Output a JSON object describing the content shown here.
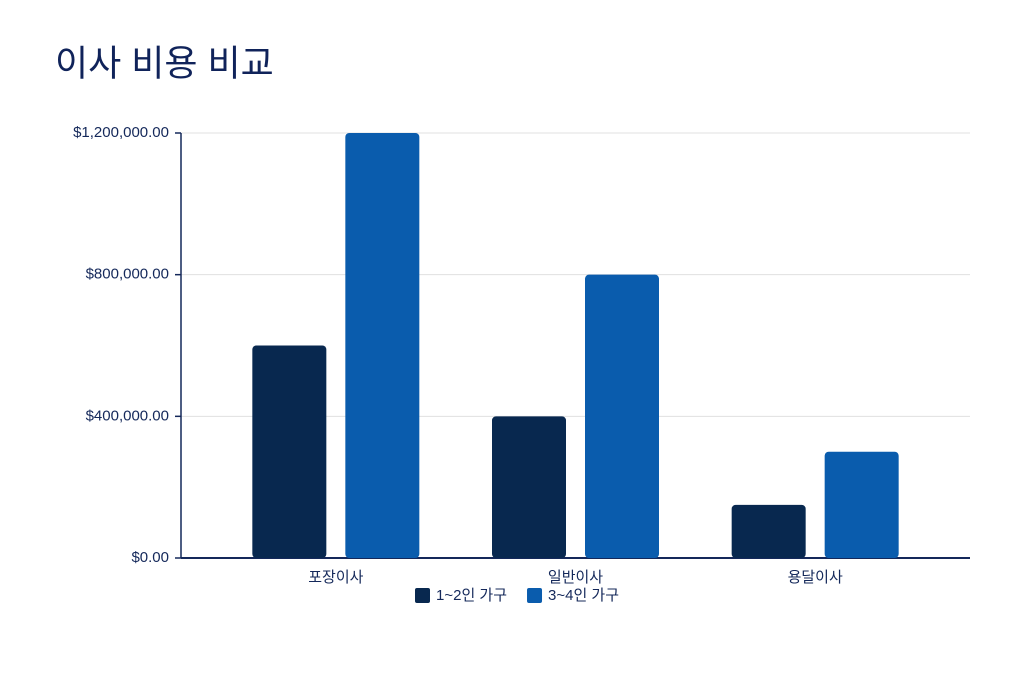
{
  "chart_data": {
    "type": "bar",
    "title": "이사 비용 비교",
    "categories": [
      "포장이사",
      "일반이사",
      "용달이사"
    ],
    "series": [
      {
        "name": "1~2인 가구",
        "color": "#08284f",
        "values": [
          600000,
          400000,
          150000
        ]
      },
      {
        "name": "3~4인 가구",
        "color": "#0a5cad",
        "values": [
          1200000,
          800000,
          300000
        ]
      }
    ],
    "ylim": [
      0,
      1200000
    ],
    "yticks": [
      {
        "value": 0,
        "label": "$0.00"
      },
      {
        "value": 400000,
        "label": "$400,000.00"
      },
      {
        "value": 800000,
        "label": "$800,000.00"
      },
      {
        "value": 1200000,
        "label": "$1,200,000.00"
      }
    ],
    "grid": true,
    "legend": "bottom"
  }
}
